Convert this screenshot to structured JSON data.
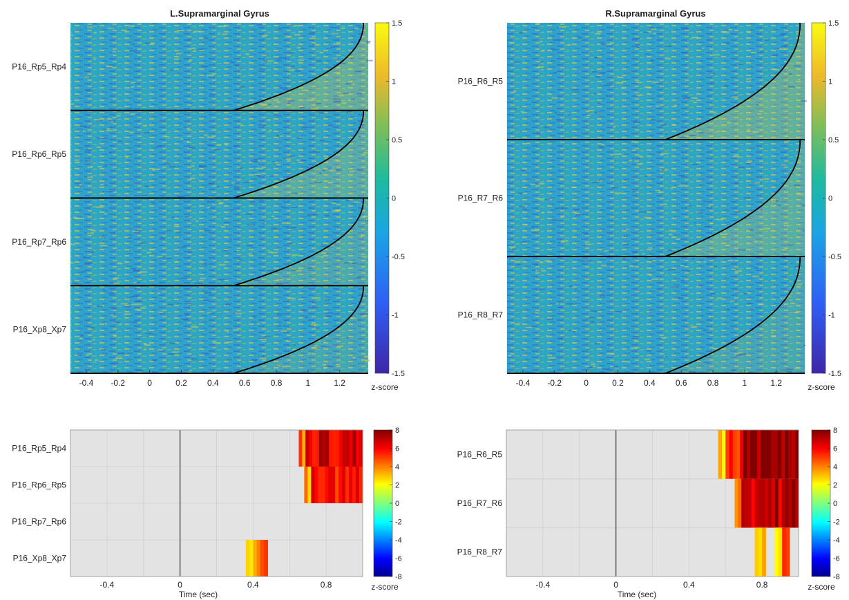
{
  "chart_data": [
    {
      "id": "tl",
      "type": "heatmap",
      "title": "L.Supramarginal Gyrus",
      "xlabel": "",
      "xlim": [
        -0.5,
        1.38
      ],
      "xticks": [
        -0.4,
        -0.2,
        0,
        0.2,
        0.4,
        0.6,
        0.8,
        1,
        1.2
      ],
      "xtick_labels": [
        "-0.4",
        "-0.2",
        "0",
        "0.2",
        "0.4",
        "0.6",
        "0.8",
        "1",
        "1.2"
      ],
      "rows": [
        {
          "label": "P16_Rp5_Rp4",
          "enhance": 1.0
        },
        {
          "label": "P16_Rp6_Rp5",
          "enhance": 0.8
        },
        {
          "label": "P16_Rp7_Rp6",
          "enhance": 0.55
        },
        {
          "label": "P16_Xp8_Xp7",
          "enhance": 0.35
        }
      ],
      "onset_curve": {
        "x_start": 0.53,
        "x_end": 1.35
      },
      "colorbar": {
        "min": -1.5,
        "max": 1.5,
        "ticks": [
          "1.5",
          "1",
          "0.5",
          "0",
          "-0.5",
          "-1",
          "-1.5"
        ],
        "label": "z-score",
        "colormap": "parula"
      },
      "colors": {
        "base": "#2fa3c8",
        "high": "#e9d23a",
        "low": "#3a55c4",
        "curve": "#000000"
      }
    },
    {
      "id": "tr",
      "type": "heatmap",
      "title": "R.Supramarginal Gyrus",
      "xlabel": "",
      "xlim": [
        -0.5,
        1.38
      ],
      "xticks": [
        -0.4,
        -0.2,
        0,
        0.2,
        0.4,
        0.6,
        0.8,
        1,
        1.2
      ],
      "xtick_labels": [
        "-0.4",
        "-0.2",
        "0",
        "0.2",
        "0.4",
        "0.6",
        "0.8",
        "1",
        "1.2"
      ],
      "rows": [
        {
          "label": "P16_R6_R5",
          "enhance": 1.0
        },
        {
          "label": "P16_R7_R6",
          "enhance": 0.8
        },
        {
          "label": "P16_R8_R7",
          "enhance": 0.45
        }
      ],
      "onset_curve": {
        "x_start": 0.5,
        "x_end": 1.35
      },
      "colorbar": {
        "min": -1.5,
        "max": 1.5,
        "ticks": [
          "1.5",
          "1",
          "0.5",
          "0",
          "-0.5",
          "-1",
          "-1.5"
        ],
        "label": "z-score",
        "colormap": "parula"
      },
      "colors": {
        "base": "#2fa3c8",
        "high": "#e9d23a",
        "low": "#3a55c4",
        "curve": "#000000"
      }
    },
    {
      "id": "bl",
      "type": "heatmap",
      "xlabel": "Time (sec)",
      "xlim": [
        -0.6,
        1.0
      ],
      "xticks": [
        -0.4,
        0,
        0.4,
        0.8
      ],
      "xtick_labels": [
        "-0.4",
        "0",
        "0.4",
        "0.8"
      ],
      "minor_xticks": [
        -0.6,
        -0.4,
        -0.2,
        0,
        0.2,
        0.4,
        0.6,
        0.8,
        1.0
      ],
      "rows": [
        {
          "label": "P16_Rp5_Rp4",
          "segments": [
            {
              "x0": 0.65,
              "x1": 1.0,
              "level": 6.5
            }
          ]
        },
        {
          "label": "P16_Rp6_Rp5",
          "segments": [
            {
              "x0": 0.68,
              "x1": 1.0,
              "level": 5.5
            }
          ]
        },
        {
          "label": "P16_Rp7_Rp6",
          "segments": []
        },
        {
          "label": "P16_Xp8_Xp7",
          "segments": [
            {
              "x0": 0.36,
              "x1": 0.48,
              "level": 4.5
            }
          ]
        }
      ],
      "colorbar": {
        "min": -8,
        "max": 8,
        "ticks": [
          "8",
          "6",
          "4",
          "2",
          "0",
          "-2",
          "-4",
          "-6",
          "-8"
        ],
        "label": "z-score",
        "colormap": "jet"
      },
      "colors": {
        "background": "#e3e3e3",
        "zero_line": "#555555"
      }
    },
    {
      "id": "br",
      "type": "heatmap",
      "xlabel": "Time (sec)",
      "xlim": [
        -0.6,
        1.0
      ],
      "xticks": [
        -0.4,
        0,
        0.4,
        0.8
      ],
      "xtick_labels": [
        "-0.4",
        "0",
        "0.4",
        "0.8"
      ],
      "minor_xticks": [
        -0.6,
        -0.4,
        -0.2,
        0,
        0.2,
        0.4,
        0.6,
        0.8,
        1.0
      ],
      "rows": [
        {
          "label": "P16_R6_R5",
          "segments": [
            {
              "x0": 0.56,
              "x1": 0.66,
              "level": 5.0
            },
            {
              "x0": 0.66,
              "x1": 1.0,
              "level": 8.0
            }
          ]
        },
        {
          "label": "P16_R7_R6",
          "segments": [
            {
              "x0": 0.65,
              "x1": 1.0,
              "level": 7.0
            }
          ]
        },
        {
          "label": "P16_R8_R7",
          "segments": [
            {
              "x0": 0.76,
              "x1": 0.82,
              "level": 4.5
            },
            {
              "x0": 0.87,
              "x1": 0.95,
              "level": 5.0
            }
          ]
        }
      ],
      "colorbar": {
        "min": -8,
        "max": 8,
        "ticks": [
          "8",
          "6",
          "4",
          "2",
          "0",
          "-2",
          "-4",
          "-6",
          "-8"
        ],
        "label": "z-score",
        "colormap": "jet"
      },
      "colors": {
        "background": "#e3e3e3",
        "zero_line": "#555555"
      }
    }
  ]
}
